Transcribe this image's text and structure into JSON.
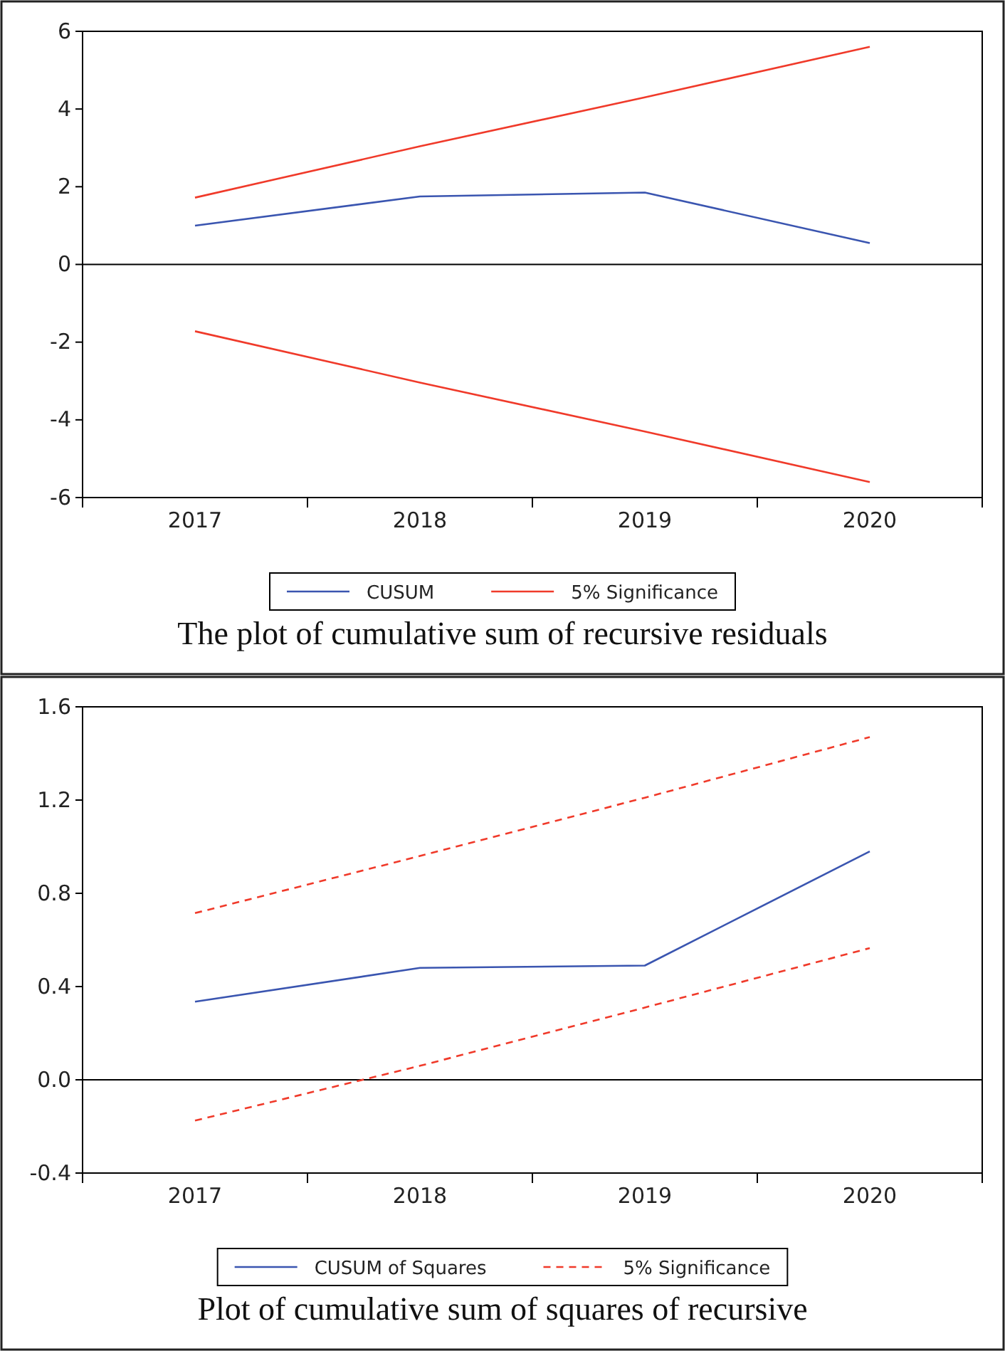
{
  "chart_data": [
    {
      "type": "line",
      "title": "The plot of cumulative sum of recursive residuals",
      "categories": [
        "2017",
        "2018",
        "2019",
        "2020"
      ],
      "series": [
        {
          "name": "CUSUM",
          "color": "#3a55b0",
          "values": [
            1.0,
            1.75,
            1.85,
            0.55
          ],
          "line_style": "solid"
        },
        {
          "name": "5% Significance",
          "color": "#f03a2a",
          "values": [
            1.72,
            3.04,
            4.3,
            5.6
          ],
          "line_style": "solid"
        },
        {
          "color": "#f03a2a",
          "values": [
            -1.72,
            -3.04,
            -4.3,
            -5.6
          ],
          "line_style": "solid"
        }
      ],
      "ylim": [
        -6,
        6
      ],
      "yticks": [
        -6,
        -4,
        -2,
        0,
        2,
        4,
        6
      ],
      "ref_lines": [
        {
          "axis": "y",
          "value": 0,
          "color": "#000000"
        }
      ],
      "legend": "bottom",
      "grid": false,
      "marker": "none"
    },
    {
      "type": "line",
      "title": "Plot of cumulative sum of squares of recursive",
      "categories": [
        "2017",
        "2018",
        "2019",
        "2020"
      ],
      "series": [
        {
          "name": "CUSUM of Squares",
          "color": "#3a55b0",
          "values": [
            0.335,
            0.48,
            0.49,
            0.98
          ],
          "line_style": "solid"
        },
        {
          "name": "5% Significance",
          "color": "#f03a2a",
          "values": [
            0.715,
            0.96,
            1.21,
            1.47
          ],
          "line_style": "dashed"
        },
        {
          "color": "#f03a2a",
          "values": [
            -0.175,
            0.06,
            0.31,
            0.565
          ],
          "line_style": "dashed"
        }
      ],
      "ylim": [
        -0.4,
        1.6
      ],
      "yticks": [
        {
          "value": -0.4,
          "label": "-0.4"
        },
        {
          "value": 0,
          "label": "0.0"
        },
        {
          "value": 0.4,
          "label": "0.4"
        },
        {
          "value": 0.8,
          "label": "0.8"
        },
        {
          "value": 1.2,
          "label": "1.2"
        },
        {
          "value": 1.6,
          "label": "1.6"
        }
      ],
      "ref_lines": [
        {
          "axis": "y",
          "value": 0,
          "color": "#000000"
        }
      ],
      "legend": "bottom",
      "grid": false,
      "marker": "none"
    }
  ]
}
